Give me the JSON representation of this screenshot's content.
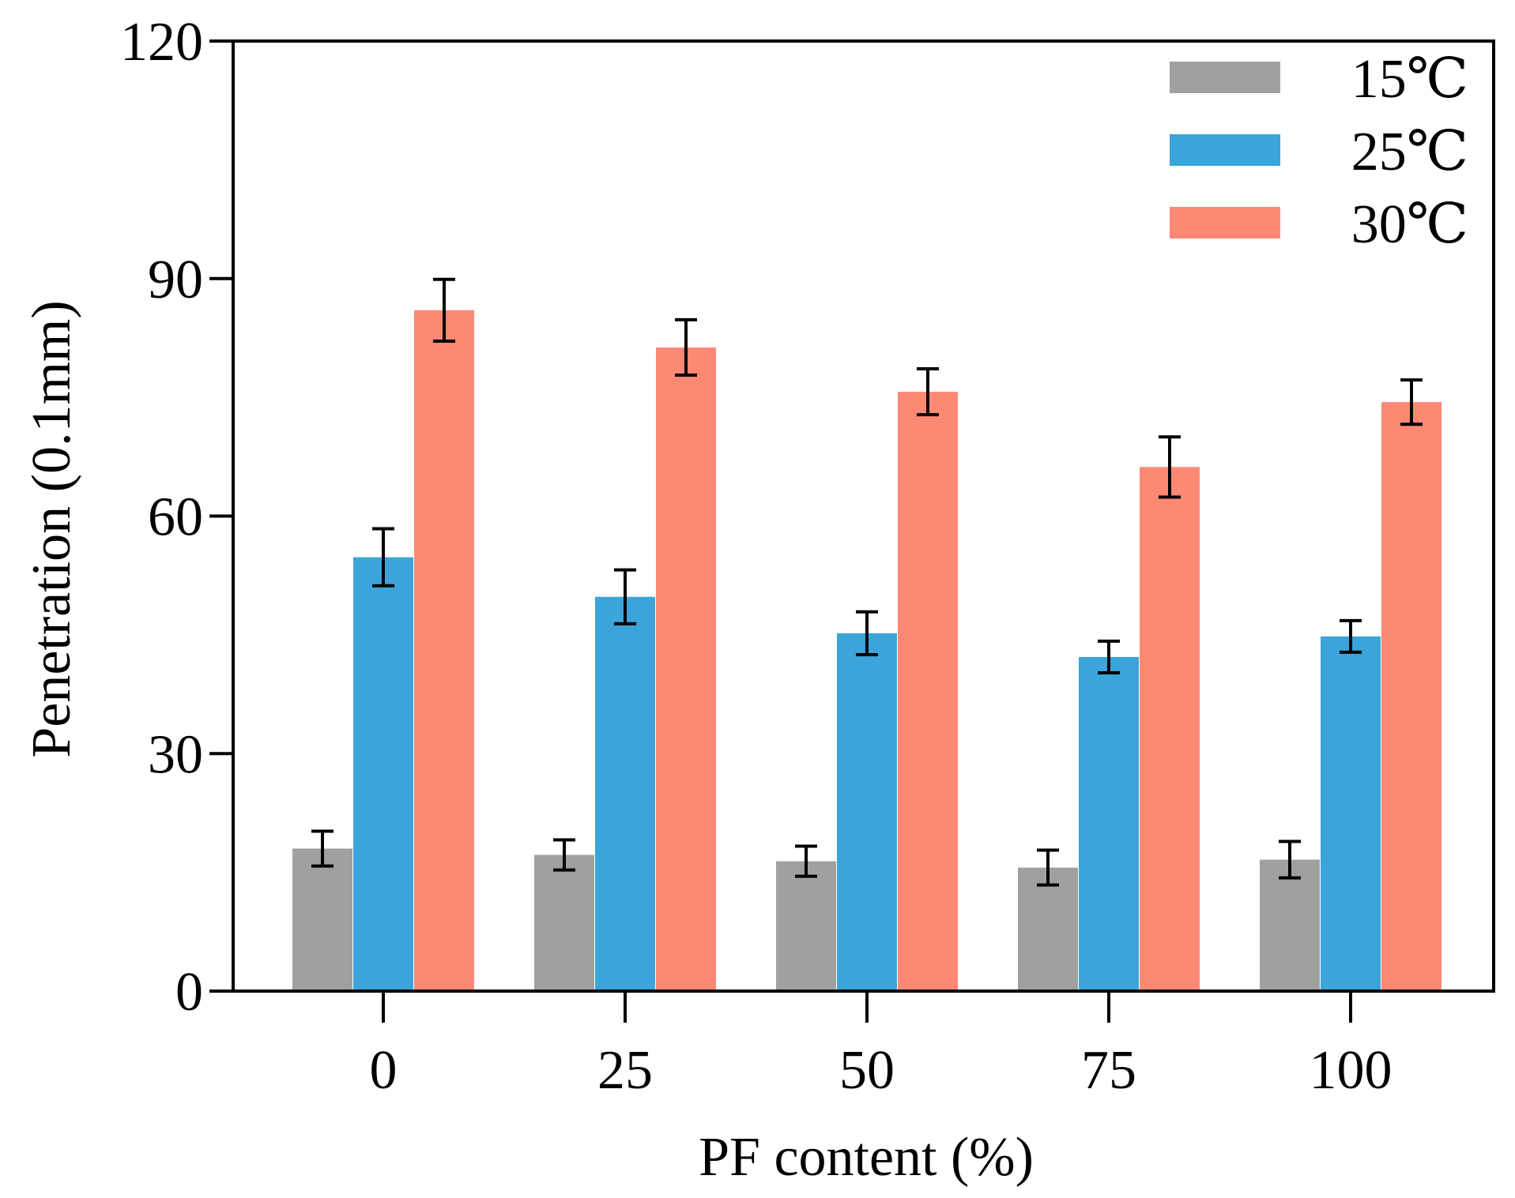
{
  "chart_data": {
    "type": "bar",
    "title": "",
    "xlabel": "PF content (%)",
    "ylabel": "Penetration (0.1mm)",
    "categories": [
      "0",
      "25",
      "50",
      "75",
      "100"
    ],
    "ylim": [
      0,
      120
    ],
    "yticks": [
      "0",
      "30",
      "60",
      "90",
      "120"
    ],
    "grid": false,
    "legend_position": "top-right",
    "error_bars": true,
    "series": [
      {
        "name": "15℃",
        "color": "#a0a09e",
        "values": [
          18,
          17.2,
          16.4,
          15.6,
          16.6
        ],
        "errors": [
          2.2,
          1.9,
          1.9,
          2.2,
          2.3
        ]
      },
      {
        "name": "25℃",
        "color": "#3ba4da",
        "values": [
          54.8,
          49.8,
          45.2,
          42.2,
          44.8
        ],
        "errors": [
          3.6,
          3.4,
          2.7,
          2.0,
          2.0
        ]
      },
      {
        "name": "30℃",
        "color": "#fd8975",
        "values": [
          86,
          81.3,
          75.7,
          66.2,
          74.4
        ],
        "errors": [
          3.9,
          3.5,
          2.9,
          3.8,
          2.8
        ]
      }
    ]
  }
}
